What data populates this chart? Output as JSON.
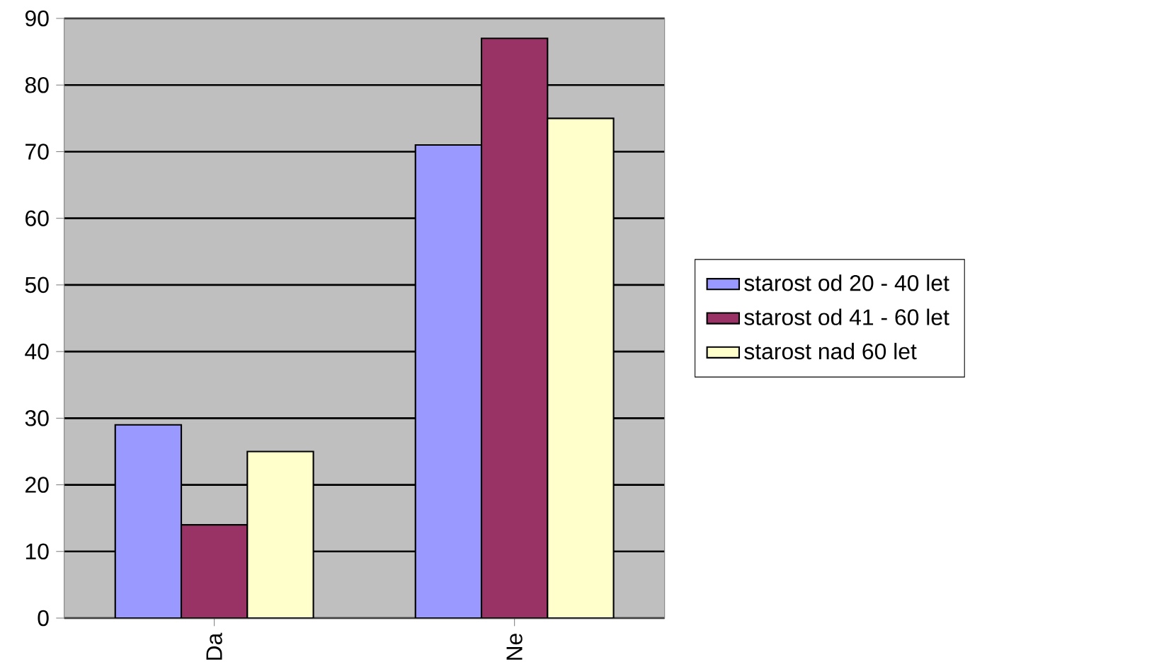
{
  "chart_data": {
    "type": "bar",
    "categories": [
      "Da",
      "Ne"
    ],
    "series": [
      {
        "name": "starost od 20 - 40 let",
        "color": "#9999ff",
        "values": [
          29,
          71
        ]
      },
      {
        "name": "starost od 41 - 60 let",
        "color": "#993366",
        "values": [
          14,
          87
        ]
      },
      {
        "name": "starost nad 60 let",
        "color": "#ffffcc",
        "values": [
          25,
          75
        ]
      }
    ],
    "ylim": [
      0,
      90
    ],
    "yticks": [
      0,
      10,
      20,
      30,
      40,
      50,
      60,
      70,
      80,
      90
    ],
    "grid": "y",
    "legend": "right"
  }
}
